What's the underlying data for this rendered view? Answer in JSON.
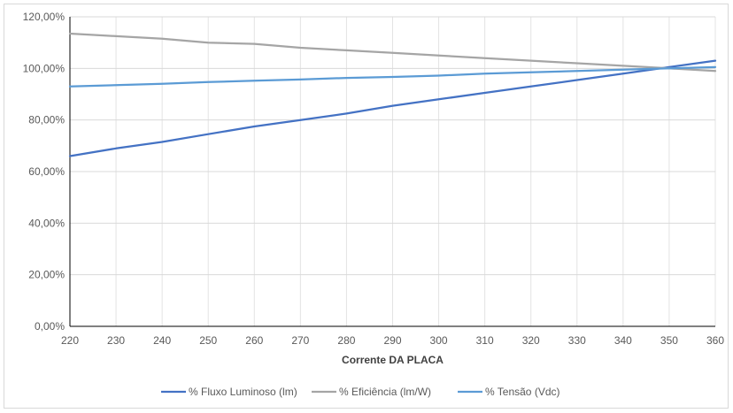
{
  "chart_data": {
    "type": "line",
    "title": "",
    "xlabel": "Corrente  DA PLACA",
    "ylabel": "",
    "x": [
      220,
      230,
      240,
      250,
      260,
      270,
      280,
      290,
      300,
      310,
      320,
      330,
      340,
      350,
      360
    ],
    "xlim": [
      220,
      360
    ],
    "ylim": [
      0,
      120
    ],
    "x_tick_labels": [
      "220",
      "230",
      "240",
      "250",
      "260",
      "270",
      "280",
      "290",
      "300",
      "310",
      "320",
      "330",
      "340",
      "350",
      "360"
    ],
    "y_ticks": [
      0,
      20,
      40,
      60,
      80,
      100,
      120
    ],
    "y_tick_labels": [
      "0,00%",
      "20,00%",
      "40,00%",
      "60,00%",
      "80,00%",
      "100,00%",
      "120,00%"
    ],
    "grid": true,
    "legend_position": "bottom",
    "series": [
      {
        "name": "% Fluxo Luminoso (lm)",
        "color": "#4472c4",
        "values": [
          66.0,
          69.0,
          71.5,
          74.5,
          77.5,
          80.0,
          82.5,
          85.5,
          88.0,
          90.5,
          93.0,
          95.5,
          98.0,
          100.5,
          103.0
        ]
      },
      {
        "name": "% Eficiência (lm/W)",
        "color": "#a5a5a5",
        "values": [
          113.5,
          112.5,
          111.5,
          110.0,
          109.5,
          108.0,
          107.0,
          106.0,
          105.0,
          104.0,
          103.0,
          102.0,
          101.0,
          100.0,
          99.0
        ]
      },
      {
        "name": "% Tensão (Vdc)",
        "color": "#5b9bd5",
        "values": [
          93.0,
          93.5,
          94.0,
          94.7,
          95.2,
          95.7,
          96.3,
          96.7,
          97.2,
          98.0,
          98.5,
          99.0,
          99.5,
          100.0,
          100.5
        ]
      }
    ]
  }
}
